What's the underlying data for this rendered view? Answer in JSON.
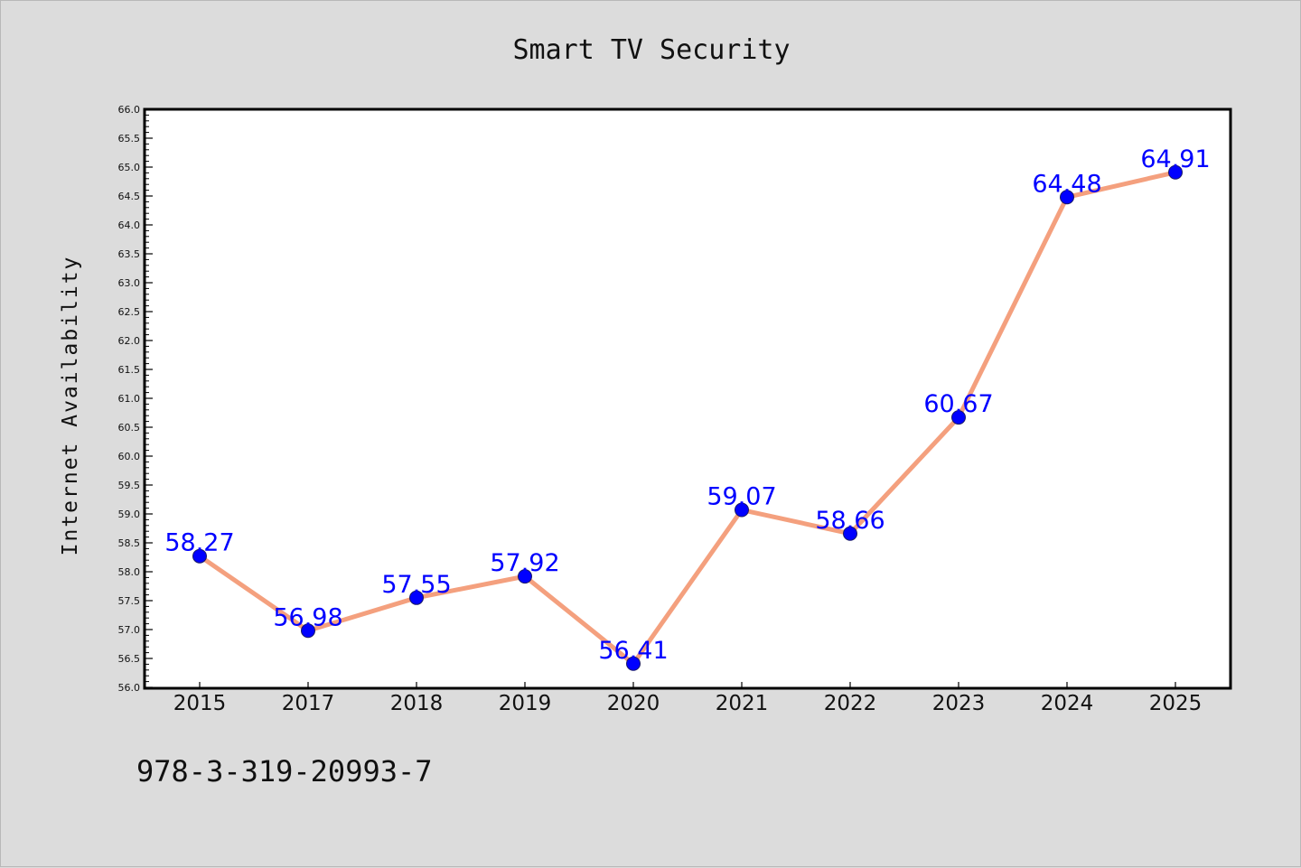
{
  "chart_data": {
    "type": "line",
    "title": "Smart TV Security",
    "xlabel": "",
    "ylabel": "Internet Availability",
    "categories": [
      "2015",
      "2017",
      "2018",
      "2019",
      "2020",
      "2021",
      "2022",
      "2023",
      "2024",
      "2025"
    ],
    "series": [
      {
        "values": [
          58.27,
          56.98,
          57.55,
          57.92,
          56.41,
          59.07,
          58.66,
          60.67,
          64.48,
          64.91
        ],
        "line_color": "#f4a07e",
        "marker_color": "#0000ff"
      }
    ],
    "data_labels": [
      "58.27",
      "56.98",
      "57.55",
      "57.92",
      "56.41",
      "59.07",
      "58.66",
      "60.67",
      "64.48",
      "64.91"
    ],
    "ylim": [
      56.0,
      66.0
    ],
    "y_ticks": [
      "56.0",
      "56.5",
      "57.0",
      "57.5",
      "58.0",
      "58.5",
      "59.0",
      "59.5",
      "60.0",
      "60.5",
      "61.0",
      "61.5",
      "62.0",
      "62.5",
      "63.0",
      "63.5",
      "64.0",
      "64.5",
      "65.0",
      "65.5",
      "66.0"
    ],
    "grid": false,
    "legend": "none",
    "data_label_color": "#0000ff"
  },
  "footer_text": "978-3-319-20993-7"
}
